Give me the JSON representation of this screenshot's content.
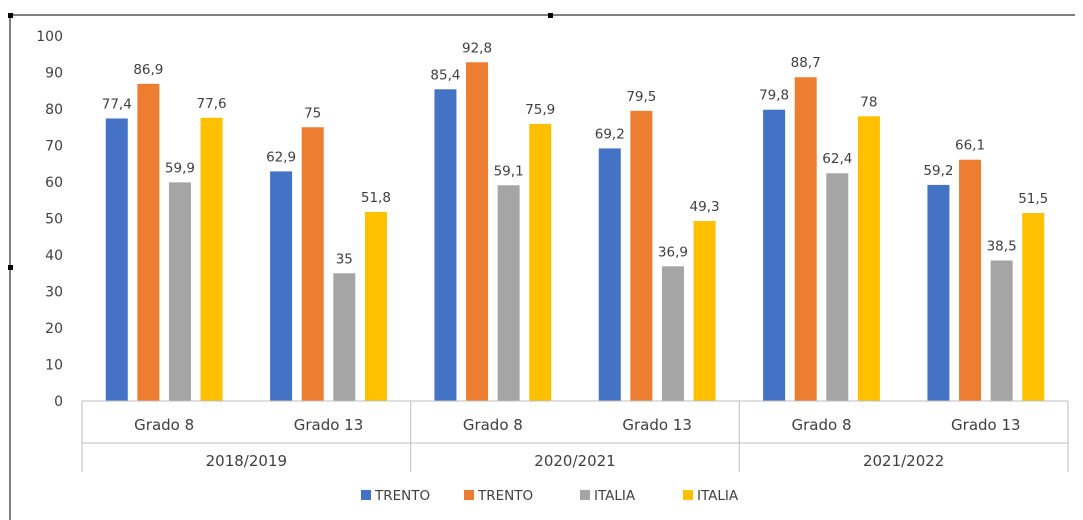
{
  "chart_data": {
    "type": "bar",
    "groups": [
      {
        "label": "2018/2019",
        "categories": [
          "Grado 8",
          "Grado 13"
        ]
      },
      {
        "label": "2020/2021",
        "categories": [
          "Grado 8",
          "Grado 13"
        ]
      },
      {
        "label": "2021/2022",
        "categories": [
          "Grado 8",
          "Grado 13"
        ]
      }
    ],
    "categories": [
      "Grado 8",
      "Grado 13",
      "Grado 8",
      "Grado 13",
      "Grado 8",
      "Grado 13"
    ],
    "series": [
      {
        "name": "TRENTO",
        "color": "#4472c4",
        "values": [
          77.4,
          62.9,
          85.4,
          69.2,
          79.8,
          59.2
        ],
        "labels": [
          "77,4",
          "62,9",
          "85,4",
          "69,2",
          "79,8",
          "59,2"
        ]
      },
      {
        "name": "TRENTO",
        "color": "#ed7d31",
        "values": [
          86.9,
          75,
          92.8,
          79.5,
          88.7,
          66.1
        ],
        "labels": [
          "86,9",
          "75",
          "92,8",
          "79,5",
          "88,7",
          "66,1"
        ]
      },
      {
        "name": "ITALIA",
        "color": "#a5a5a5",
        "values": [
          59.9,
          35,
          59.1,
          36.9,
          62.4,
          38.5
        ],
        "labels": [
          "59,9",
          "35",
          "59,1",
          "36,9",
          "62,4",
          "38,5"
        ]
      },
      {
        "name": "ITALIA",
        "color": "#ffc000",
        "values": [
          77.6,
          51.8,
          75.9,
          49.3,
          78,
          51.5
        ],
        "labels": [
          "77,6",
          "51,8",
          "75,9",
          "49,3",
          "78",
          "51,5"
        ]
      }
    ],
    "yticks": [
      "0",
      "10",
      "20",
      "30",
      "40",
      "50",
      "60",
      "70",
      "80",
      "90",
      "100"
    ],
    "ylim": [
      0,
      100
    ],
    "grid": false,
    "legend": "bottom",
    "title": "",
    "xlabel": "",
    "ylabel": ""
  }
}
